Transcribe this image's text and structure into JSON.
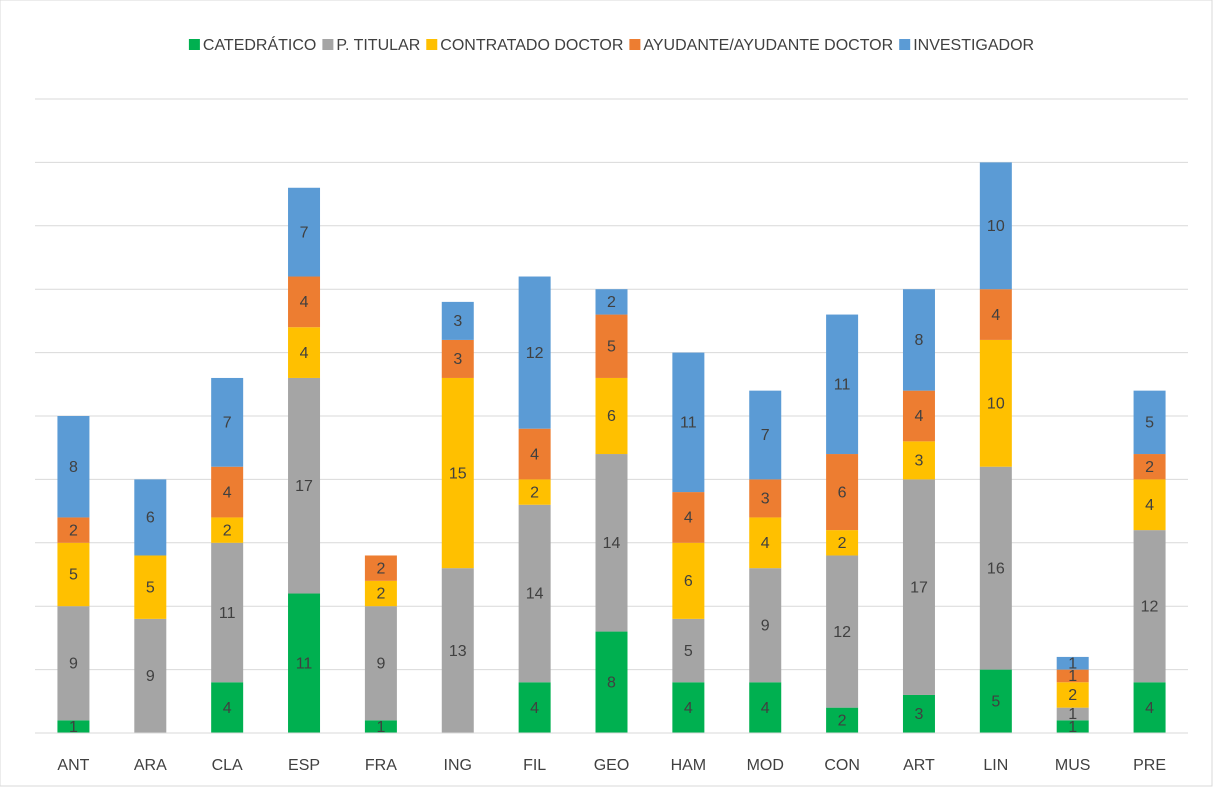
{
  "chart_data": {
    "type": "stacked_bar",
    "categories": [
      "ANT",
      "ARA",
      "CLA",
      "ESP",
      "FRA",
      "ING",
      "FIL",
      "GEO",
      "HAM",
      "MOD",
      "CON",
      "ART",
      "LIN",
      "MUS",
      "PRE"
    ],
    "series": [
      {
        "name": "CATEDRÁTICO",
        "color": "#00b050",
        "values": [
          1,
          null,
          4,
          11,
          1,
          null,
          4,
          8,
          4,
          4,
          2,
          3,
          5,
          1,
          4
        ]
      },
      {
        "name": "P. TITULAR",
        "color": "#a5a5a5",
        "values": [
          9,
          9,
          11,
          17,
          9,
          13,
          14,
          14,
          5,
          9,
          12,
          17,
          16,
          1,
          12
        ]
      },
      {
        "name": "CONTRATADO DOCTOR",
        "color": "#ffc000",
        "values": [
          5,
          5,
          2,
          4,
          2,
          15,
          2,
          6,
          6,
          4,
          2,
          3,
          10,
          2,
          4
        ]
      },
      {
        "name": "AYUDANTE/AYUDANTE DOCTOR",
        "color": "#ed7d31",
        "values": [
          2,
          null,
          4,
          4,
          2,
          3,
          4,
          5,
          4,
          3,
          6,
          4,
          4,
          1,
          2
        ]
      },
      {
        "name": "INVESTIGADOR",
        "color": "#5b9bd5",
        "values": [
          8,
          6,
          7,
          7,
          null,
          3,
          12,
          2,
          11,
          7,
          11,
          8,
          10,
          1,
          5
        ]
      }
    ],
    "ylim": [
      0,
      50
    ],
    "yticks": [
      0,
      5,
      10,
      15,
      20,
      25,
      30,
      35,
      40,
      45,
      50
    ],
    "grid": true,
    "legend": "top"
  }
}
